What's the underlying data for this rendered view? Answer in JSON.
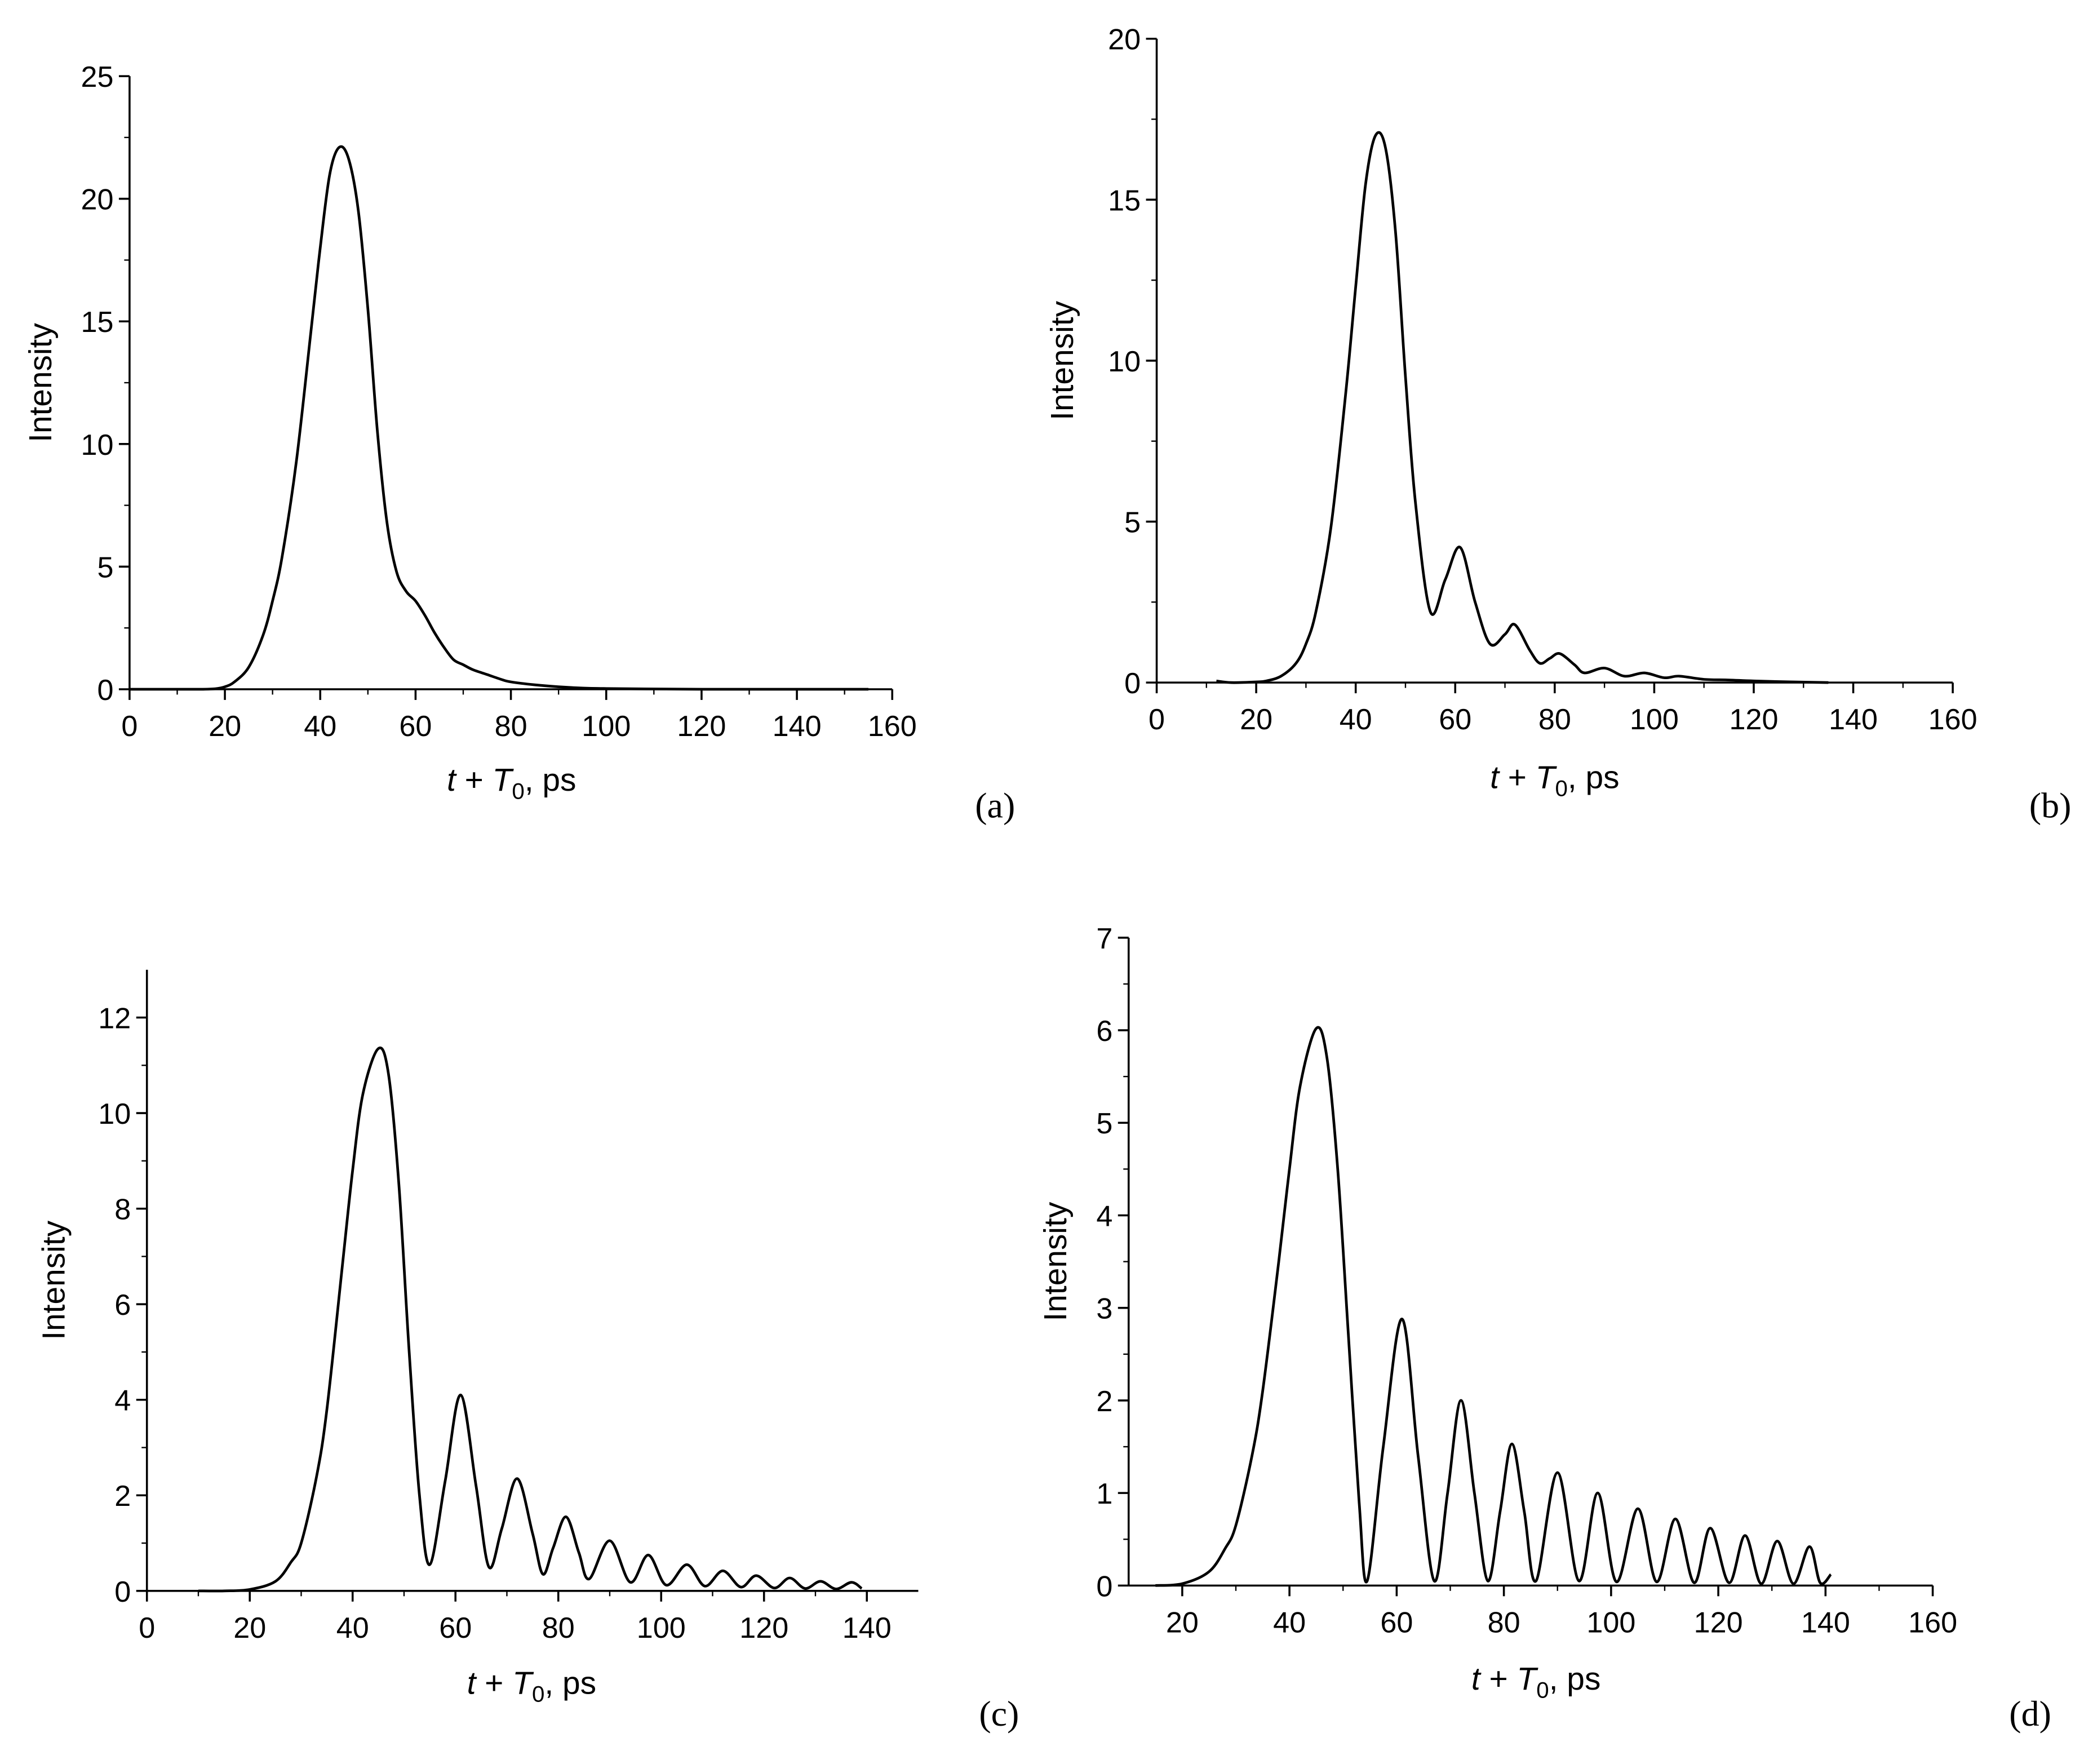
{
  "chart_data": [
    {
      "type": "line",
      "panel_label": "(a)",
      "ylabel": "Intensity",
      "xlabel": [
        "t",
        " + ",
        "T",
        "0",
        ", ps"
      ],
      "color": "#000000",
      "xlim": [
        0,
        160
      ],
      "ylim": [
        0,
        25
      ],
      "xticks": [
        0,
        20,
        40,
        60,
        80,
        100,
        120,
        140,
        160
      ],
      "yticks": [
        0,
        5,
        10,
        15,
        20,
        25
      ],
      "x": [
        0,
        10,
        15,
        18,
        20,
        22,
        25,
        28,
        30,
        32,
        35,
        38,
        40,
        42,
        44,
        46,
        48,
        50,
        52,
        54,
        56,
        58,
        60,
        62,
        64,
        66,
        68,
        70,
        72,
        75,
        78,
        80,
        85,
        90,
        95,
        100,
        110,
        120,
        130,
        140,
        150,
        155
      ],
      "values": [
        0,
        0,
        0,
        0.02,
        0.1,
        0.3,
        0.9,
        2.2,
        3.6,
        5.4,
        9.3,
        14.5,
        18,
        21,
        22.1,
        21.6,
        19.5,
        15.5,
        10.5,
        6.8,
        4.8,
        4.0,
        3.6,
        3.0,
        2.3,
        1.7,
        1.2,
        1.0,
        0.8,
        0.6,
        0.4,
        0.3,
        0.18,
        0.1,
        0.05,
        0.03,
        0.01,
        0,
        0,
        0,
        0,
        0
      ]
    },
    {
      "type": "line",
      "panel_label": "(b)",
      "ylabel": "Intensity",
      "xlabel": [
        "t",
        " + ",
        "T",
        "0",
        ", ps"
      ],
      "color": "#000000",
      "xlim": [
        0,
        160
      ],
      "ylim": [
        0,
        20
      ],
      "xticks": [
        0,
        20,
        40,
        60,
        80,
        100,
        120,
        140,
        160
      ],
      "yticks": [
        0,
        5,
        10,
        15,
        20
      ],
      "x": [
        12,
        15,
        20,
        22,
        25,
        28,
        30,
        32,
        35,
        38,
        40,
        42,
        44,
        46,
        48,
        50,
        52,
        55,
        58,
        61,
        64,
        67,
        70,
        72,
        75,
        77,
        79,
        81,
        84,
        86,
        90,
        94,
        98,
        102,
        105,
        110,
        115,
        120,
        128,
        135
      ],
      "values": [
        0.05,
        0,
        0.02,
        0.05,
        0.2,
        0.6,
        1.2,
        2.2,
        4.8,
        9,
        12.3,
        15.5,
        17,
        16.6,
        14,
        9.5,
        5.6,
        2.2,
        3.2,
        4.2,
        2.5,
        1.2,
        1.5,
        1.8,
        1.0,
        0.6,
        0.75,
        0.9,
        0.55,
        0.3,
        0.45,
        0.2,
        0.3,
        0.15,
        0.2,
        0.1,
        0.08,
        0.05,
        0.02,
        0
      ]
    },
    {
      "type": "line",
      "panel_label": "(c)",
      "ylabel": "Intensity",
      "xlabel": [
        "t",
        " + ",
        "T",
        "0",
        ", ps"
      ],
      "color": "#000000",
      "xlim": [
        0,
        150
      ],
      "ylim": [
        0,
        13
      ],
      "xticks": [
        0,
        20,
        40,
        60,
        80,
        100,
        120,
        140
      ],
      "yticks": [
        0,
        2,
        4,
        6,
        8,
        10,
        12
      ],
      "x": [
        10,
        15,
        20,
        25,
        28,
        30,
        33,
        35,
        38,
        40,
        42,
        45,
        47,
        49,
        51,
        53,
        55,
        58,
        61,
        64,
        66.5,
        69,
        72,
        75,
        77,
        79,
        81.5,
        84,
        86,
        90,
        94,
        97.5,
        101,
        105,
        108.5,
        112,
        115.5,
        118.5,
        122,
        125,
        128,
        131,
        134,
        137,
        139
      ],
      "values": [
        0,
        0,
        0.03,
        0.2,
        0.6,
        1.0,
        2.4,
        3.8,
        6.8,
        8.8,
        10.4,
        11.35,
        10.8,
        8.5,
        5,
        2,
        0.55,
        2.3,
        4.1,
        2.2,
        0.5,
        1.3,
        2.35,
        1.2,
        0.35,
        0.9,
        1.55,
        0.8,
        0.25,
        1.05,
        0.18,
        0.75,
        0.12,
        0.55,
        0.1,
        0.42,
        0.08,
        0.32,
        0.06,
        0.27,
        0.05,
        0.2,
        0.04,
        0.18,
        0.05
      ]
    },
    {
      "type": "line",
      "panel_label": "(d)",
      "ylabel": "Intensity",
      "xlabel": [
        "t",
        " + ",
        "T",
        "0",
        ", ps"
      ],
      "color": "#000000",
      "xlim": [
        10,
        160
      ],
      "ylim": [
        0,
        7
      ],
      "xticks": [
        20,
        40,
        60,
        80,
        100,
        120,
        140,
        160
      ],
      "yticks": [
        0,
        1,
        2,
        3,
        4,
        5,
        6,
        7
      ],
      "x": [
        15,
        20,
        25,
        28,
        30,
        33,
        35,
        38,
        40,
        42,
        45,
        47,
        49,
        51,
        53,
        54.5,
        57.5,
        61,
        64,
        67,
        69.5,
        72,
        74.5,
        77,
        79.3,
        81.5,
        83.8,
        86,
        90,
        94,
        97.5,
        101,
        105,
        108.5,
        112,
        115.5,
        118.5,
        122,
        125,
        128,
        131,
        134,
        137,
        139,
        141
      ],
      "values": [
        0,
        0.02,
        0.15,
        0.4,
        0.65,
        1.4,
        2.1,
        3.5,
        4.5,
        5.4,
        6.02,
        5.7,
        4.5,
        2.7,
        0.9,
        0.05,
        1.5,
        2.88,
        1.4,
        0.05,
        1.0,
        2.0,
        1.0,
        0.05,
        0.8,
        1.53,
        0.8,
        0.05,
        1.22,
        0.05,
        1.0,
        0.04,
        0.83,
        0.04,
        0.72,
        0.03,
        0.62,
        0.03,
        0.54,
        0.02,
        0.48,
        0.02,
        0.42,
        0.03,
        0.12
      ]
    }
  ]
}
